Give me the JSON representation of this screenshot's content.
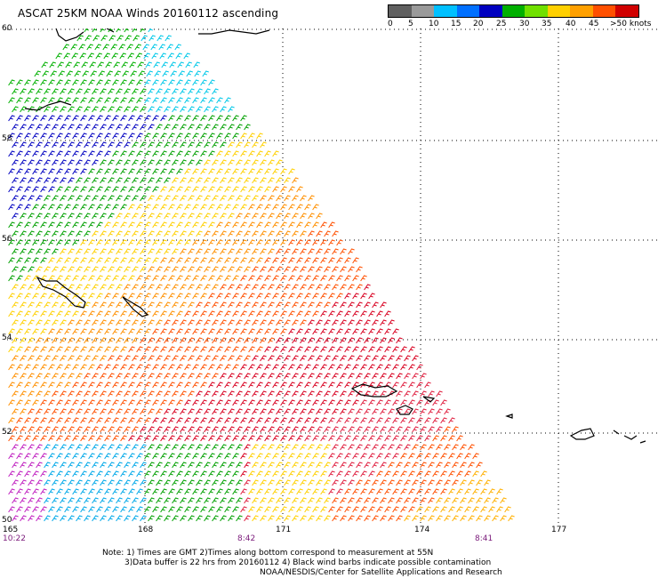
{
  "title": "ASCAT 25KM NOAA Winds 20160112 ascending",
  "legend": {
    "colors": [
      "#606060",
      "#9a9a9a",
      "#00c0ff",
      "#0070ff",
      "#0000c0",
      "#00b000",
      "#70e000",
      "#ffd000",
      "#ffa000",
      "#ff5000",
      "#d00000",
      "#ff1050",
      "#c01830",
      "#905020",
      "#d060d0",
      "#ff00ff",
      "#a000c0",
      "#6000a0",
      "#400080"
    ],
    "labels": [
      "0",
      "5",
      "10",
      "15",
      "20",
      "25",
      "30",
      "35",
      "40",
      "45",
      ">50 knots"
    ]
  },
  "lat_labels": [
    "60",
    "58",
    "56",
    "54",
    "52",
    "50"
  ],
  "lon_labels": [
    "165",
    "168",
    "171",
    "174",
    "177"
  ],
  "time_labels": [
    "10:22",
    "8:42",
    "8:41"
  ],
  "notes": [
    "Note: 1) Times are GMT 2)Times along bottom correspond to measurement at 55N",
    "3)Data buffer is 22 hrs from 20160112 4) Black wind barbs indicate possible contamination",
    "NOAA/NESDIS/Center for Satellite Applications and Research"
  ]
}
